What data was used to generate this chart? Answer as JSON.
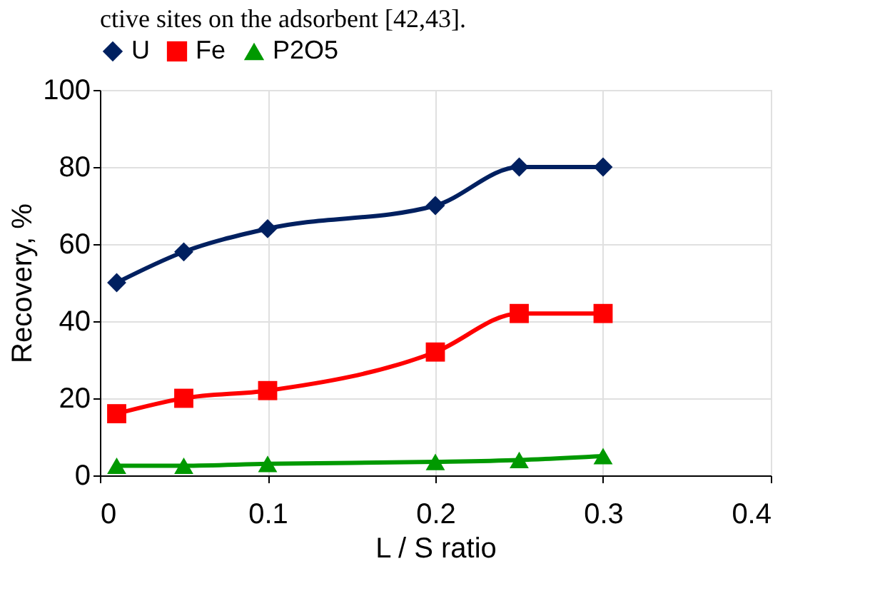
{
  "chart_data": {
    "type": "line",
    "xlabel": "L / S ratio",
    "ylabel": "Recovery, %",
    "annotations": [
      "ctive sites on the adsorbent [42,43]."
    ],
    "x": [
      0.01,
      0.05,
      0.1,
      0.2,
      0.25,
      0.3
    ],
    "series": [
      {
        "name": "U",
        "color": "#002060",
        "marker": "diamond",
        "values": [
          50,
          58,
          64,
          70,
          80,
          80
        ]
      },
      {
        "name": "Fe",
        "color": "#ff0000",
        "marker": "square",
        "values": [
          16,
          20,
          22,
          32,
          42,
          42
        ]
      },
      {
        "name": "P2O5",
        "color": "#009900",
        "marker": "triangle",
        "values": [
          2.5,
          2.5,
          3,
          3.5,
          4,
          5
        ]
      }
    ],
    "xlim": [
      0,
      0.4
    ],
    "xticks": [
      0,
      0.1,
      0.2,
      0.3,
      0.4
    ],
    "ylim": [
      0,
      100
    ],
    "yticks": [
      0,
      20,
      40,
      60,
      80,
      100
    ],
    "grid": true,
    "legend": "top",
    "line_style": "solid"
  }
}
